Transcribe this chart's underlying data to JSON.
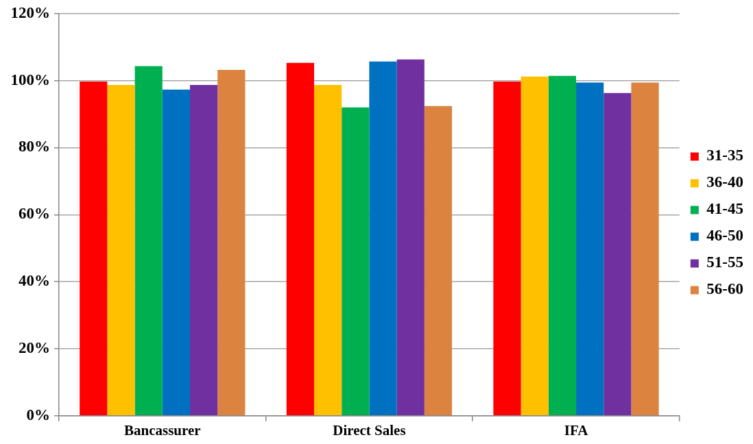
{
  "chart_data": {
    "type": "bar",
    "categories": [
      "Bancassurer",
      "Direct Sales",
      "IFA"
    ],
    "series": [
      {
        "name": "31-35",
        "color": "#ff0000",
        "values": [
          99.7,
          105.3,
          99.7
        ]
      },
      {
        "name": "36-40",
        "color": "#ffc000",
        "values": [
          98.7,
          98.7,
          101.2
        ]
      },
      {
        "name": "41-45",
        "color": "#00b050",
        "values": [
          104.3,
          92.0,
          101.4
        ]
      },
      {
        "name": "46-50",
        "color": "#0070c0",
        "values": [
          97.3,
          105.7,
          99.4
        ]
      },
      {
        "name": "51-55",
        "color": "#7030a0",
        "values": [
          98.7,
          106.3,
          96.3
        ]
      },
      {
        "name": "56-60",
        "color": "#dc843f",
        "values": [
          103.2,
          92.4,
          99.4
        ]
      }
    ],
    "ylim": [
      0,
      120
    ],
    "yticks": [
      {
        "value": 0,
        "label": "0%"
      },
      {
        "value": 20,
        "label": "20%"
      },
      {
        "value": 40,
        "label": "40%"
      },
      {
        "value": 60,
        "label": "60%"
      },
      {
        "value": 80,
        "label": "80%"
      },
      {
        "value": 100,
        "label": "100%"
      },
      {
        "value": 120,
        "label": "120%"
      }
    ],
    "grid": "y",
    "legend": "right"
  }
}
